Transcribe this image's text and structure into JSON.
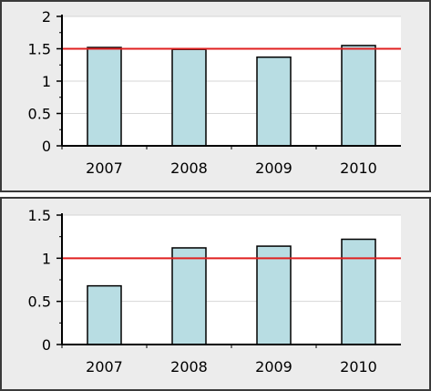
{
  "chart_data": [
    {
      "type": "bar",
      "categories": [
        "2007",
        "2008",
        "2009",
        "2010"
      ],
      "values": [
        1.52,
        1.49,
        1.37,
        1.55
      ],
      "reference_line": 1.5,
      "ylim": [
        0,
        2
      ],
      "yticks": [
        0,
        0.5,
        1,
        1.5,
        2
      ],
      "ytick_labels": [
        "0",
        "0.5",
        "1",
        "1.5",
        "2"
      ],
      "grid": true,
      "bar_color": "#b8dde3",
      "bar_stroke": "#000000",
      "reference_color": "#e02020",
      "grid_color": "#d6d6d6"
    },
    {
      "type": "bar",
      "categories": [
        "2007",
        "2008",
        "2009",
        "2010"
      ],
      "values": [
        0.68,
        1.12,
        1.14,
        1.22
      ],
      "reference_line": 1.0,
      "ylim": [
        0,
        1.5
      ],
      "yticks": [
        0,
        0.5,
        1,
        1.5
      ],
      "ytick_labels": [
        "0",
        "0.5",
        "1",
        "1.5"
      ],
      "grid": true,
      "bar_color": "#b8dde3",
      "bar_stroke": "#000000",
      "reference_color": "#e02020",
      "grid_color": "#d6d6d6"
    }
  ]
}
